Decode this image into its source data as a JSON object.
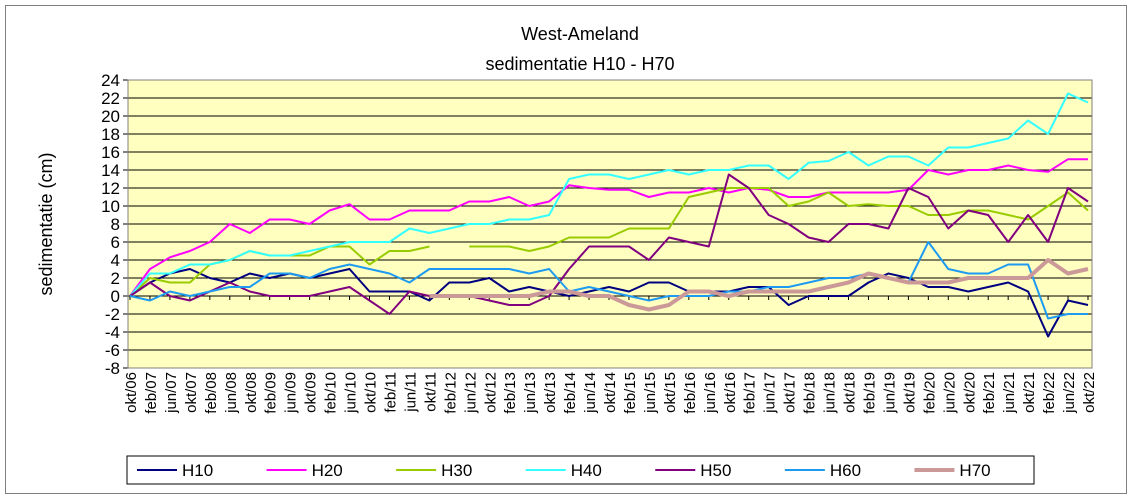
{
  "chart_data": {
    "type": "line",
    "title": "West-Ameland",
    "subtitle": "sedimentatie H10 - H70",
    "y_label": "sedimentatie (cm)",
    "categories": [
      "okt/06",
      "feb/07",
      "jun/07",
      "okt/07",
      "feb/08",
      "jun/08",
      "okt/08",
      "feb/09",
      "jun/09",
      "okt/09",
      "feb/10",
      "jun/10",
      "okt/10",
      "feb/11",
      "jun/11",
      "okt/11",
      "feb/12",
      "jun/12",
      "okt/12",
      "feb/13",
      "jun/13",
      "okt/13",
      "feb/14",
      "jun/14",
      "okt/14",
      "feb/15",
      "jun/15",
      "okt/15",
      "feb/16",
      "jun/16",
      "okt/16",
      "feb/17",
      "jun/17",
      "okt/17",
      "feb/18",
      "jun/18",
      "okt/18",
      "feb/19",
      "jun/19",
      "okt/19",
      "feb/20",
      "jun/20",
      "okt/20",
      "feb/21",
      "jun/21",
      "okt/21",
      "feb/22",
      "jun/22",
      "okt/22"
    ],
    "series": [
      {
        "name": "H10",
        "color": "#000080",
        "width": 2,
        "values": [
          0,
          1.5,
          2.5,
          3,
          2,
          1.5,
          2.5,
          2,
          2.5,
          2,
          2.5,
          3,
          0.5,
          0.5,
          0.5,
          -0.5,
          1.5,
          1.5,
          2,
          0.5,
          1,
          0.5,
          0,
          0.5,
          1,
          0.5,
          1.5,
          1.5,
          0.5,
          0.5,
          0.5,
          1,
          1,
          -1,
          0,
          0,
          0,
          1.5,
          2.5,
          2,
          1,
          1,
          0.5,
          1,
          1.5,
          0.5,
          -4.5,
          -0.5,
          -1
        ]
      },
      {
        "name": "H20",
        "color": "#ff00ff",
        "width": 2,
        "values": [
          0,
          3,
          4.3,
          5,
          6,
          8,
          7,
          8.5,
          8.5,
          8,
          9.5,
          10.2,
          8.5,
          8.5,
          9.5,
          9.5,
          9.5,
          10.5,
          10.5,
          11,
          10,
          10.5,
          12.3,
          12,
          11.8,
          11.8,
          11,
          11.5,
          11.5,
          12,
          11.5,
          12,
          11.8,
          11,
          11,
          11.5,
          11.5,
          11.5,
          11.5,
          11.8,
          14,
          13.5,
          14,
          14,
          14.5,
          14,
          13.8,
          15.2,
          15.2
        ]
      },
      {
        "name": "H30",
        "color": "#99cc00",
        "width": 2,
        "values": [
          0,
          2,
          1.5,
          1.5,
          3.5,
          4,
          5,
          4.5,
          4.5,
          4.5,
          5.5,
          5.5,
          3.5,
          5,
          5,
          5.5,
          null,
          5.5,
          5.5,
          5.5,
          5,
          5.5,
          6.5,
          6.5,
          6.5,
          7.5,
          7.5,
          7.5,
          11,
          11.5,
          12,
          12,
          12,
          10,
          10.5,
          11.5,
          10,
          10.2,
          10,
          10,
          9,
          9,
          9.5,
          9.5,
          9,
          8.5,
          10,
          11.5,
          9.5
        ]
      },
      {
        "name": "H40",
        "color": "#33ffff",
        "width": 2,
        "values": [
          0,
          2.5,
          2.5,
          3.5,
          3.5,
          4,
          5,
          4.5,
          4.5,
          5,
          5.5,
          6,
          6,
          6,
          7.5,
          7,
          7.5,
          8,
          8,
          8.5,
          8.5,
          9,
          13,
          13.5,
          13.5,
          13,
          13.5,
          14,
          13.5,
          14,
          14,
          14.5,
          14.5,
          13,
          14.8,
          15,
          16,
          14.5,
          15.5,
          15.5,
          14.5,
          16.5,
          16.5,
          17,
          17.5,
          19.5,
          18,
          22.5,
          21.5
        ]
      },
      {
        "name": "H50",
        "color": "#800080",
        "width": 2,
        "values": [
          0,
          1.5,
          0,
          -0.5,
          0.5,
          1.5,
          0.5,
          0,
          0,
          0,
          0.5,
          1,
          -0.5,
          -2,
          0.5,
          0,
          0,
          0,
          -0.5,
          -1,
          -1,
          0,
          3,
          5.5,
          5.5,
          5.5,
          4,
          6.5,
          6,
          5.5,
          13.5,
          12,
          9,
          8,
          6.5,
          6,
          8,
          8,
          7.5,
          12,
          11,
          7.5,
          9.5,
          9,
          6,
          9,
          6,
          12,
          10.5
        ]
      },
      {
        "name": "H60",
        "color": "#1e9bf0",
        "width": 2,
        "values": [
          0,
          -0.5,
          0.5,
          0,
          0.5,
          1,
          1,
          2.5,
          2.5,
          2,
          3,
          3.5,
          3,
          2.5,
          1.5,
          3,
          3,
          3,
          3,
          3,
          2.5,
          3,
          0.5,
          1,
          0.5,
          0,
          -0.5,
          0,
          0,
          0,
          0.5,
          0.5,
          1,
          1,
          1.5,
          2,
          2,
          2.5,
          2,
          1.5,
          6,
          3,
          2.5,
          2.5,
          3.5,
          3.5,
          -2.5,
          -2,
          -2
        ]
      },
      {
        "name": "H70",
        "color": "#cc9999",
        "width": 4,
        "values": [
          null,
          null,
          null,
          null,
          null,
          null,
          null,
          null,
          null,
          null,
          null,
          null,
          null,
          null,
          null,
          0,
          0,
          0,
          0,
          0,
          0,
          0.5,
          0.5,
          0,
          0,
          -1,
          -1.5,
          -1,
          0.5,
          0.5,
          0,
          0.5,
          0.5,
          0.5,
          0.5,
          1,
          1.5,
          2.5,
          2,
          1.5,
          1.5,
          1.5,
          2,
          2,
          2,
          2,
          4,
          2.5,
          3
        ]
      }
    ],
    "ylim": [
      -8,
      24
    ],
    "yticks": [
      -8,
      -6,
      -4,
      -2,
      0,
      2,
      4,
      6,
      8,
      10,
      12,
      14,
      16,
      18,
      20,
      22,
      24
    ],
    "grid": true,
    "plot_background": "#ffffc0",
    "legend_position": "bottom"
  }
}
